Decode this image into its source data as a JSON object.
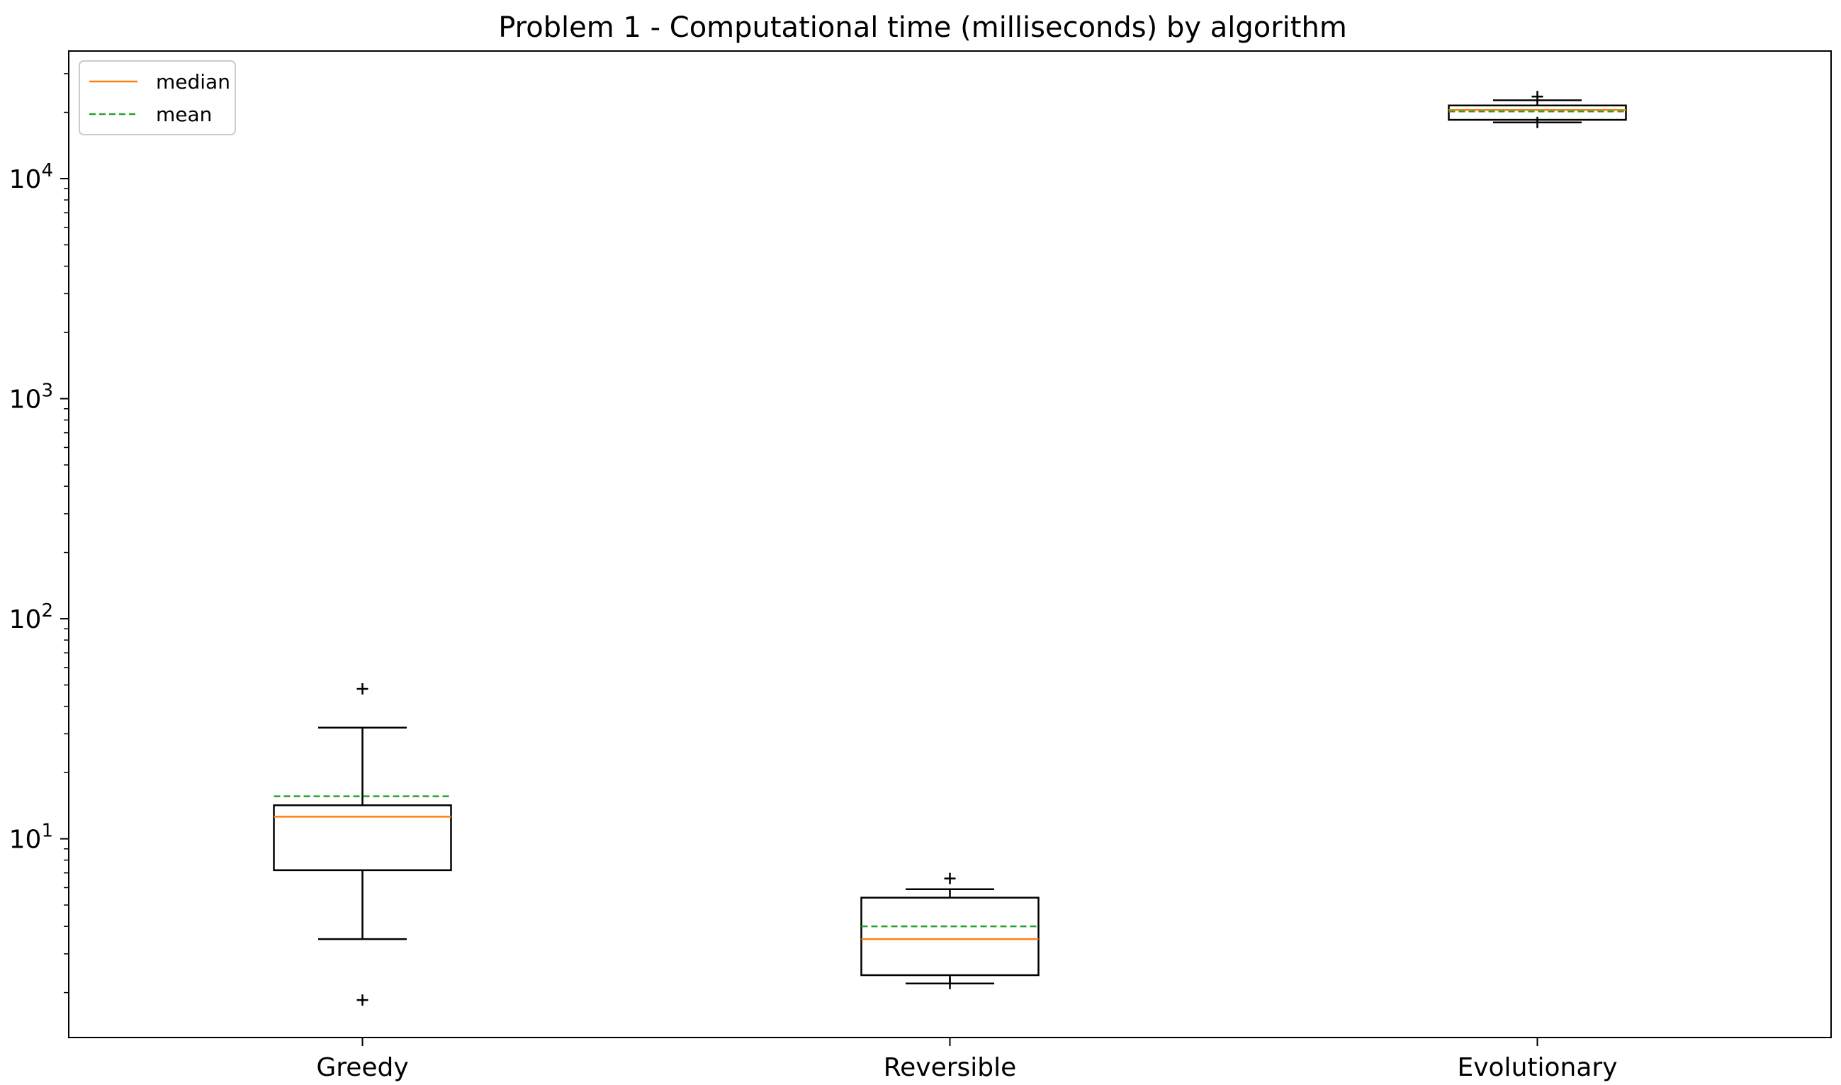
{
  "chart_data": {
    "type": "box",
    "title": "Problem 1 - Computational time (milliseconds) by algorithm",
    "xlabel": "",
    "ylabel": "",
    "yscale": "log",
    "ylim": [
      1.25,
      38000
    ],
    "y_major_ticks": [
      {
        "value": 10,
        "base": "10",
        "exp": "1"
      },
      {
        "value": 100,
        "base": "10",
        "exp": "2"
      },
      {
        "value": 1000,
        "base": "10",
        "exp": "3"
      },
      {
        "value": 10000,
        "base": "10",
        "exp": "4"
      }
    ],
    "grid": false,
    "legend": {
      "placement": "upper-left",
      "entries": [
        {
          "label": "median",
          "style": "solid",
          "color": "#ff7f0e"
        },
        {
          "label": "mean",
          "style": "dashed",
          "color": "#2ca02c"
        }
      ]
    },
    "categories": [
      "Greedy",
      "Reversible",
      "Evolutionary"
    ],
    "boxes": [
      {
        "name": "Greedy",
        "whisker_low": 3.5,
        "q1": 7.2,
        "median": 12.6,
        "q3": 14.2,
        "whisker_high": 32,
        "mean": 15.6,
        "outliers": [
          48,
          1.85
        ]
      },
      {
        "name": "Reversible",
        "whisker_low": 2.2,
        "q1": 2.4,
        "median": 3.5,
        "q3": 5.4,
        "whisker_high": 5.9,
        "mean": 4.0,
        "outliers": [
          6.6,
          2.2
        ]
      },
      {
        "name": "Evolutionary",
        "whisker_low": 18000,
        "q1": 18500,
        "median": 20500,
        "q3": 21500,
        "whisker_high": 22700,
        "mean": 20200,
        "outliers": [
          23600,
          18000
        ]
      }
    ],
    "colors": {
      "box": "#000000",
      "median": "#ff7f0e",
      "mean": "#2ca02c"
    }
  }
}
